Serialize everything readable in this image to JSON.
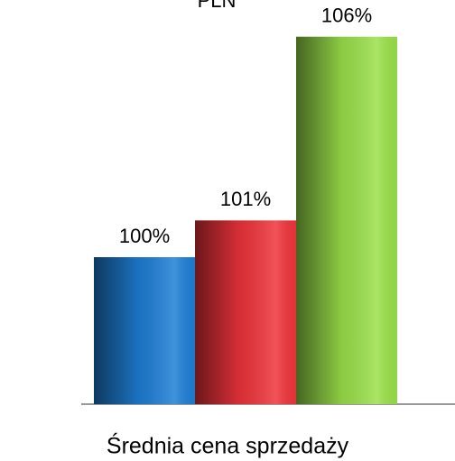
{
  "chart_data": {
    "type": "bar",
    "title": "PLN",
    "categories": [
      "Średnia cena sprzedaży"
    ],
    "series": [
      {
        "color": "#1f7fd6",
        "values": [
          100
        ],
        "value_labels": [
          "100%"
        ]
      },
      {
        "color": "#f0343c",
        "values": [
          101
        ],
        "value_labels": [
          "101%"
        ]
      },
      {
        "color": "#9be14a",
        "values": [
          106
        ],
        "value_labels": [
          "106%"
        ]
      }
    ],
    "ylim": [
      96,
      107
    ]
  }
}
